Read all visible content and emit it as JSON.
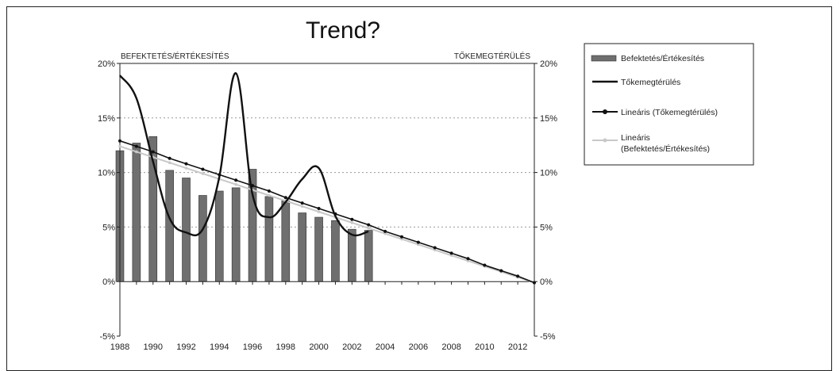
{
  "chart_data": {
    "type": "bar",
    "title": "Trend?",
    "left_axis_label": "BEFEKTETÉS/ÉRTÉKESÍTÉS",
    "right_axis_label": "TŐKEMEGTÉRÜLÉS",
    "x_ticks": [
      "1988",
      "1990",
      "1992",
      "1994",
      "1996",
      "1998",
      "2000",
      "2002",
      "2004",
      "2006",
      "2008",
      "2010",
      "2012"
    ],
    "x_range": [
      1988,
      2013
    ],
    "ylim": [
      -5,
      20
    ],
    "y_ticks": [
      "20%",
      "15%",
      "10%",
      "5%",
      "0%",
      "-5%"
    ],
    "y_right_ticks": [
      "20%",
      "15%",
      "10%",
      "5%",
      "0%",
      "-5%"
    ],
    "grid": true,
    "legend_position": "right",
    "series": [
      {
        "name": "Befektetés/Értékesítés",
        "kind": "bar",
        "x": [
          1988,
          1989,
          1990,
          1991,
          1992,
          1993,
          1994,
          1995,
          1996,
          1997,
          1998,
          1999,
          2000,
          2001,
          2002,
          2003
        ],
        "values": [
          12.0,
          12.7,
          13.3,
          10.2,
          9.5,
          7.9,
          8.3,
          8.6,
          10.3,
          7.8,
          7.4,
          6.3,
          5.9,
          5.6,
          4.8,
          4.7
        ]
      },
      {
        "name": "Tőkemegtérülés",
        "kind": "line",
        "x": [
          1988,
          1989,
          1990,
          1991,
          1992,
          1993,
          1994,
          1995,
          1996,
          1997,
          1998,
          1999,
          2000,
          2001,
          2002,
          2003
        ],
        "values": [
          18.9,
          16.8,
          11.0,
          5.8,
          4.5,
          4.8,
          9.6,
          19.1,
          8.0,
          5.9,
          7.3,
          9.4,
          10.4,
          6.0,
          4.3,
          4.6
        ]
      },
      {
        "name": "Lineáris (Tőkemegtérülés)",
        "kind": "trendline",
        "x": [
          1988,
          1989,
          1990,
          1991,
          1992,
          1993,
          1994,
          1995,
          1996,
          1997,
          1998,
          1999,
          2000,
          2001,
          2002,
          2003,
          2004,
          2005,
          2006,
          2007,
          2008,
          2009,
          2010,
          2011,
          2012,
          2013
        ],
        "values": [
          12.9,
          12.4,
          11.9,
          11.3,
          10.8,
          10.3,
          9.8,
          9.3,
          8.8,
          8.3,
          7.7,
          7.2,
          6.7,
          6.2,
          5.7,
          5.2,
          4.6,
          4.1,
          3.6,
          3.1,
          2.6,
          2.1,
          1.5,
          1.0,
          0.5,
          -0.1
        ]
      },
      {
        "name": "Lineáris (Befektetés/Értékesítés)",
        "kind": "trendline",
        "x": [
          1988,
          1989,
          1990,
          1991,
          1992,
          1993,
          1994,
          1995,
          1996,
          1997,
          1998,
          1999,
          2000,
          2001,
          2002,
          2003,
          2004,
          2005,
          2006,
          2007,
          2008,
          2009,
          2010,
          2011,
          2012,
          2013
        ],
        "values": [
          12.4,
          11.9,
          11.4,
          10.9,
          10.4,
          9.9,
          9.4,
          8.9,
          8.4,
          7.9,
          7.4,
          6.9,
          6.4,
          5.9,
          5.4,
          4.9,
          4.4,
          3.9,
          3.4,
          2.9,
          2.4,
          1.9,
          1.4,
          0.9,
          0.4,
          -0.1
        ]
      }
    ],
    "colors": {
      "bar_fill": "#6f6f6f",
      "bar_stroke": "#333333",
      "roe_line": "#111111",
      "trend_roe": "#111111",
      "trend_invest": "#c8c8c8",
      "grid": "#999999"
    }
  }
}
